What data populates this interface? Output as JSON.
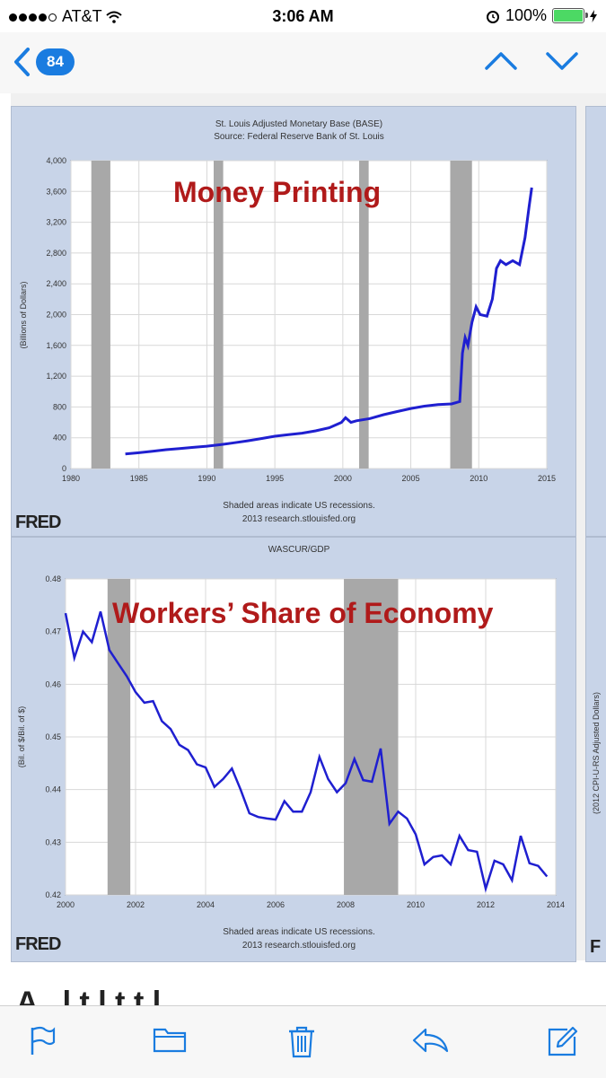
{
  "status_bar": {
    "carrier": "AT&T",
    "time": "3:06 AM",
    "battery": "100%"
  },
  "nav": {
    "back_count": "84"
  },
  "chart_top": {
    "title_line1": "St. Louis Adjusted Monetary Base (BASE)",
    "title_line2": "Source: Federal Reserve Bank of St. Louis",
    "overlay": "Money Printing",
    "footnote1": "Shaded areas indicate US recessions.",
    "footnote2": "2013 research.stlouisfed.org",
    "logo": "FRED"
  },
  "chart_bottom": {
    "title_line1": "WASCUR/GDP",
    "overlay": "Workers’ Share of Economy",
    "footnote1": "Shaded areas indicate US recessions.",
    "footnote2": "2013 research.stlouisfed.org",
    "logo": "FRED"
  },
  "side_panel": {
    "ylabel": "(2012 CPI-U-RS Adjusted Dollars)",
    "logo_fragment": "F"
  },
  "below_text": "A . l   t         l          t     t         l",
  "chart_data": [
    {
      "type": "line",
      "title": "St. Louis Adjusted Monetary Base (BASE)",
      "xlabel": "",
      "ylabel": "(Billions of Dollars)",
      "xlim": [
        1980,
        2015
      ],
      "ylim": [
        0,
        4000
      ],
      "xticks": [
        1980,
        1985,
        1990,
        1995,
        2000,
        2005,
        2010,
        2015
      ],
      "yticks": [
        0,
        400,
        800,
        1200,
        1600,
        2000,
        2400,
        2800,
        3200,
        3600,
        4000
      ],
      "ytick_labels": [
        "0",
        "400",
        "800",
        "1,200",
        "1,600",
        "2,000",
        "2,400",
        "2,800",
        "3,200",
        "3,600",
        "4,000"
      ],
      "recessions": [
        [
          1981.5,
          1982.9
        ],
        [
          1990.5,
          1991.2
        ],
        [
          2001.2,
          2001.9
        ],
        [
          2007.9,
          2009.5
        ]
      ],
      "series": [
        {
          "color": "#1f1fd0",
          "points": [
            [
              1984.0,
              190
            ],
            [
              1985,
              205
            ],
            [
              1986,
              225
            ],
            [
              1987,
              245
            ],
            [
              1988,
              260
            ],
            [
              1989,
              275
            ],
            [
              1990,
              290
            ],
            [
              1991,
              310
            ],
            [
              1992,
              335
            ],
            [
              1993,
              360
            ],
            [
              1994,
              390
            ],
            [
              1995,
              420
            ],
            [
              1996,
              440
            ],
            [
              1997,
              460
            ],
            [
              1998,
              490
            ],
            [
              1999,
              530
            ],
            [
              1999.9,
              600
            ],
            [
              2000.2,
              660
            ],
            [
              2000.6,
              600
            ],
            [
              2001,
              620
            ],
            [
              2002,
              650
            ],
            [
              2003,
              700
            ],
            [
              2004,
              740
            ],
            [
              2005,
              780
            ],
            [
              2006,
              810
            ],
            [
              2007,
              830
            ],
            [
              2008.0,
              840
            ],
            [
              2008.6,
              870
            ],
            [
              2008.8,
              1500
            ],
            [
              2009.0,
              1700
            ],
            [
              2009.2,
              1600
            ],
            [
              2009.5,
              1900
            ],
            [
              2009.8,
              2100
            ],
            [
              2010.1,
              2000
            ],
            [
              2010.6,
              1980
            ],
            [
              2011.0,
              2200
            ],
            [
              2011.3,
              2600
            ],
            [
              2011.6,
              2700
            ],
            [
              2012.0,
              2650
            ],
            [
              2012.5,
              2700
            ],
            [
              2013.0,
              2650
            ],
            [
              2013.4,
              3000
            ],
            [
              2013.7,
              3400
            ],
            [
              2013.9,
              3650
            ]
          ]
        }
      ]
    },
    {
      "type": "line",
      "title": "WASCUR/GDP",
      "xlabel": "",
      "ylabel": "(Bil. of $/Bil. of $)",
      "xlim": [
        2000,
        2014
      ],
      "ylim": [
        0.42,
        0.48
      ],
      "xticks": [
        2000,
        2002,
        2004,
        2006,
        2008,
        2010,
        2012,
        2014
      ],
      "yticks": [
        0.42,
        0.43,
        0.44,
        0.45,
        0.46,
        0.47,
        0.48
      ],
      "recessions": [
        [
          2001.2,
          2001.85
        ],
        [
          2007.95,
          2009.5
        ]
      ],
      "series": [
        {
          "color": "#1f1fd0",
          "points": [
            [
              2000.0,
              0.4735
            ],
            [
              2000.25,
              0.465
            ],
            [
              2000.5,
              0.47
            ],
            [
              2000.75,
              0.468
            ],
            [
              2001.0,
              0.4738
            ],
            [
              2001.25,
              0.4665
            ],
            [
              2001.5,
              0.464
            ],
            [
              2001.75,
              0.4615
            ],
            [
              2002.0,
              0.4585
            ],
            [
              2002.25,
              0.4565
            ],
            [
              2002.5,
              0.4568
            ],
            [
              2002.75,
              0.453
            ],
            [
              2003.0,
              0.4515
            ],
            [
              2003.25,
              0.4485
            ],
            [
              2003.5,
              0.4475
            ],
            [
              2003.75,
              0.4448
            ],
            [
              2004.0,
              0.4442
            ],
            [
              2004.25,
              0.4405
            ],
            [
              2004.5,
              0.442
            ],
            [
              2004.75,
              0.444
            ],
            [
              2005.0,
              0.44
            ],
            [
              2005.25,
              0.4355
            ],
            [
              2005.5,
              0.4348
            ],
            [
              2005.75,
              0.4345
            ],
            [
              2006.0,
              0.4343
            ],
            [
              2006.25,
              0.4378
            ],
            [
              2006.5,
              0.4358
            ],
            [
              2006.75,
              0.4358
            ],
            [
              2007.0,
              0.4395
            ],
            [
              2007.25,
              0.4462
            ],
            [
              2007.5,
              0.442
            ],
            [
              2007.75,
              0.4395
            ],
            [
              2008.0,
              0.4412
            ],
            [
              2008.25,
              0.4458
            ],
            [
              2008.5,
              0.4418
            ],
            [
              2008.75,
              0.4415
            ],
            [
              2009.0,
              0.4478
            ],
            [
              2009.25,
              0.4335
            ],
            [
              2009.5,
              0.4358
            ],
            [
              2009.75,
              0.4345
            ],
            [
              2010.0,
              0.4315
            ],
            [
              2010.25,
              0.4258
            ],
            [
              2010.5,
              0.4272
            ],
            [
              2010.75,
              0.4275
            ],
            [
              2011.0,
              0.4258
            ],
            [
              2011.25,
              0.4312
            ],
            [
              2011.5,
              0.4285
            ],
            [
              2011.75,
              0.4282
            ],
            [
              2012.0,
              0.4212
            ],
            [
              2012.25,
              0.4265
            ],
            [
              2012.5,
              0.4258
            ],
            [
              2012.75,
              0.4228
            ],
            [
              2013.0,
              0.4312
            ],
            [
              2013.25,
              0.426
            ],
            [
              2013.5,
              0.4255
            ],
            [
              2013.75,
              0.4235
            ]
          ]
        }
      ]
    }
  ],
  "colors": {
    "accent": "#1a7ce0",
    "panel_bg": "#c8d4e8",
    "overlay_red": "#b01a1a",
    "recession": "#a8a8a8"
  }
}
